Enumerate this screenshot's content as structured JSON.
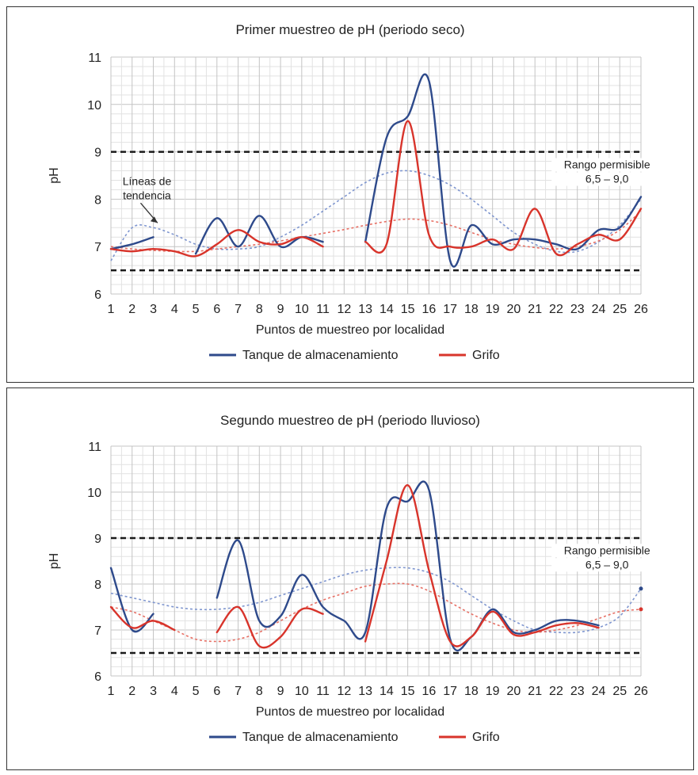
{
  "colors": {
    "tanque": "#2e4a8b",
    "grifo": "#d8342b",
    "tanque_trend": "#7f96cf",
    "grifo_trend": "#e77065",
    "limit": "#1a1a1a",
    "grid": "#c4c4c4"
  },
  "chart_data": [
    {
      "type": "line",
      "title": "Primer muestreo de pH (periodo seco)",
      "xlabel": "Puntos de muestreo por localidad",
      "ylabel": "pH",
      "x": [
        1,
        2,
        3,
        4,
        5,
        6,
        7,
        8,
        9,
        10,
        11,
        12,
        13,
        14,
        15,
        16,
        17,
        18,
        19,
        20,
        21,
        22,
        23,
        24,
        25,
        26
      ],
      "xlim": [
        1,
        26
      ],
      "ylim": [
        6,
        11
      ],
      "yticks": [
        6,
        7,
        8,
        9,
        10,
        11
      ],
      "grid": true,
      "legend_position": "bottom-center",
      "limit_lines": [
        6.5,
        9.0
      ],
      "annotations": [
        {
          "text": [
            "Líneas de",
            "tendencia"
          ],
          "type": "arrow-label"
        },
        {
          "text": [
            "Rango permisible",
            "6,5 – 9,0"
          ],
          "type": "label"
        }
      ],
      "series": [
        {
          "name": "Tanque de almacenamiento",
          "color_key": "tanque",
          "values": [
            6.95,
            7.05,
            7.2,
            null,
            6.85,
            7.6,
            7.0,
            7.65,
            7.0,
            7.2,
            7.1,
            null,
            7.1,
            9.3,
            9.75,
            10.5,
            6.7,
            7.45,
            7.05,
            7.15,
            7.15,
            7.05,
            6.95,
            7.35,
            7.4,
            8.05
          ]
        },
        {
          "name": "Grifo",
          "color_key": "grifo",
          "values": [
            6.95,
            6.9,
            6.95,
            6.9,
            6.8,
            7.05,
            7.35,
            7.1,
            7.05,
            7.2,
            7.0,
            null,
            7.1,
            7.05,
            9.65,
            7.25,
            7.0,
            7.0,
            7.15,
            6.95,
            7.8,
            6.85,
            7.05,
            7.25,
            7.15,
            7.8
          ]
        }
      ],
      "trendlines": [
        {
          "color_key": "tanque_trend",
          "values": [
            6.7,
            7.4,
            7.4,
            7.25,
            7.05,
            6.95,
            6.95,
            7.0,
            7.2,
            7.45,
            7.75,
            8.05,
            8.35,
            8.55,
            8.6,
            8.5,
            8.3,
            8.0,
            7.65,
            7.3,
            7.05,
            6.9,
            6.9,
            7.1,
            7.45,
            8.0
          ]
        },
        {
          "color_key": "grifo_trend",
          "values": [
            7.0,
            6.95,
            6.92,
            6.9,
            6.9,
            6.95,
            7.0,
            7.05,
            7.12,
            7.2,
            7.28,
            7.36,
            7.45,
            7.53,
            7.58,
            7.55,
            7.45,
            7.3,
            7.15,
            7.05,
            6.98,
            6.95,
            7.0,
            7.12,
            7.35,
            7.75
          ]
        }
      ]
    },
    {
      "type": "line",
      "title": "Segundo muestreo de pH (periodo lluvioso)",
      "xlabel": "Puntos de muestreo por localidad",
      "ylabel": "pH",
      "x": [
        1,
        2,
        3,
        4,
        5,
        6,
        7,
        8,
        9,
        10,
        11,
        12,
        13,
        14,
        15,
        16,
        17,
        18,
        19,
        20,
        21,
        22,
        23,
        24,
        25,
        26
      ],
      "xlim": [
        1,
        26
      ],
      "ylim": [
        6,
        11
      ],
      "yticks": [
        6,
        7,
        8,
        9,
        10,
        11
      ],
      "grid": true,
      "legend_position": "bottom-center",
      "limit_lines": [
        6.5,
        9.0
      ],
      "annotations": [
        {
          "text": [
            "Rango permisible",
            "6,5 – 9,0"
          ],
          "type": "label"
        }
      ],
      "series": [
        {
          "name": "Tanque de almacenamiento",
          "color_key": "tanque",
          "values": [
            8.35,
            7.0,
            7.35,
            null,
            null,
            7.7,
            8.95,
            7.2,
            7.3,
            8.2,
            7.5,
            7.2,
            6.95,
            9.65,
            9.8,
            10.05,
            6.8,
            6.85,
            7.45,
            6.95,
            7.0,
            7.2,
            7.2,
            7.1,
            null,
            7.9
          ]
        },
        {
          "name": "Grifo",
          "color_key": "grifo",
          "values": [
            7.5,
            7.05,
            7.2,
            7.0,
            null,
            6.95,
            7.5,
            6.65,
            6.85,
            7.45,
            7.35,
            null,
            6.75,
            8.5,
            10.15,
            8.3,
            6.75,
            6.85,
            7.4,
            6.9,
            6.95,
            7.1,
            7.15,
            7.05,
            null,
            7.45
          ]
        }
      ],
      "trendlines": [
        {
          "color_key": "tanque_trend",
          "values": [
            7.8,
            7.7,
            7.6,
            7.5,
            7.45,
            7.45,
            7.5,
            7.6,
            7.75,
            7.9,
            8.05,
            8.2,
            8.3,
            8.35,
            8.35,
            8.25,
            8.05,
            7.75,
            7.45,
            7.2,
            7.0,
            6.95,
            6.95,
            7.05,
            7.3,
            7.9
          ]
        },
        {
          "color_key": "grifo_trend",
          "values": [
            7.5,
            7.4,
            7.2,
            7.0,
            6.8,
            6.75,
            6.8,
            6.95,
            7.2,
            7.45,
            7.65,
            7.8,
            7.95,
            8.0,
            8.0,
            7.85,
            7.6,
            7.35,
            7.15,
            7.0,
            6.95,
            7.0,
            7.1,
            7.25,
            7.4,
            7.45
          ]
        }
      ]
    }
  ]
}
